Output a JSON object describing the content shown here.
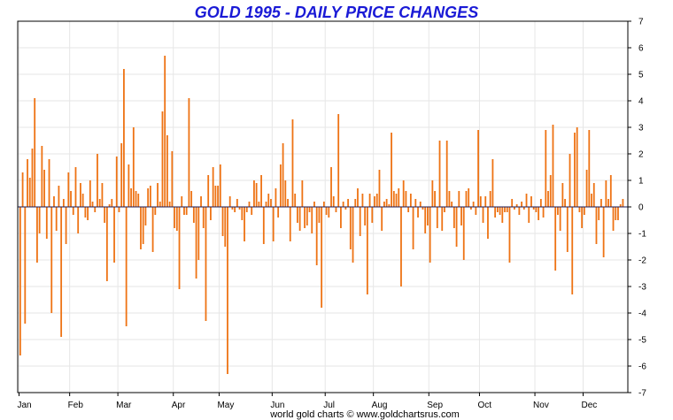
{
  "chart_data": {
    "type": "bar",
    "title": "GOLD 1995 - DAILY PRICE CHANGES",
    "footer": "world gold charts © www.goldchartsrus.com",
    "ylim": [
      -7,
      7
    ],
    "yticks": [
      "7",
      "6",
      "5",
      "4",
      "3",
      "2",
      "1",
      "0",
      "-1",
      "-2",
      "-3",
      "-4",
      "-5",
      "-6",
      "-7"
    ],
    "y_axis_side": "right",
    "grid": true,
    "months": [
      "Jan",
      "Feb",
      "Mar",
      "Apr",
      "May",
      "Jun",
      "Jul",
      "Aug",
      "Sep",
      "Oct",
      "Nov",
      "Dec"
    ],
    "x_domain_days": 252,
    "month_start_day": [
      0,
      21,
      41,
      64,
      83,
      105,
      127,
      147,
      170,
      191,
      214,
      234
    ],
    "series": [
      {
        "values": [
          -5.6,
          1.3,
          -4.4,
          1.8,
          1.1,
          2.2,
          4.1,
          -2.1,
          -1.0,
          2.3,
          1.4,
          -1.2,
          1.8,
          -4.0,
          0.4,
          -0.9,
          0.8,
          -4.9,
          0.3,
          -1.4,
          1.3,
          0.6,
          -0.3,
          1.5,
          -1.0,
          0.9,
          0.5,
          -0.4,
          -0.5,
          1.0,
          0.2,
          -0.2,
          2.0,
          0.3,
          0.9,
          -0.6,
          -2.8,
          0.1,
          0.3,
          -2.1,
          1.9,
          -0.2,
          2.4,
          5.2,
          -4.5,
          1.6,
          0.7,
          3.0,
          0.6,
          0.5,
          -1.6,
          -1.4,
          -0.7,
          0.7,
          0.8,
          -1.7,
          -0.3,
          0.9,
          0.2,
          3.6,
          5.7,
          2.7,
          0.2,
          2.1,
          -0.8,
          -0.9,
          -3.1,
          0.4,
          -0.3,
          -0.3,
          4.1,
          0.6,
          -0.6,
          -2.7,
          -2.0,
          0.4,
          -0.8,
          -4.3,
          1.2,
          -0.5,
          1.5,
          0.8,
          0.8,
          1.6,
          -1.1,
          -1.5,
          -6.3,
          0.4,
          -0.1,
          -0.2,
          0.3,
          -0.1,
          -0.5,
          -1.3,
          -0.2,
          0.2,
          -0.3,
          1.0,
          0.9,
          0.2,
          1.2,
          -1.4,
          0.2,
          0.5,
          0.3,
          -1.3,
          0.7,
          -0.4,
          1.6,
          2.4,
          1.0,
          0.3,
          -1.3,
          3.3,
          0.5,
          -0.6,
          -0.9,
          1.0,
          -0.8,
          -0.7,
          -0.2,
          -1.0,
          0.2,
          -2.2,
          -0.6,
          -3.8,
          0.2,
          -0.3,
          -0.4,
          1.5,
          0.4,
          -0.2,
          3.5,
          -0.8,
          0.2,
          -0.1,
          0.3,
          -1.6,
          -2.1,
          0.3,
          0.7,
          -1.1,
          0.5,
          -0.7,
          -3.3,
          0.5,
          -0.6,
          0.4,
          0.5,
          1.4,
          -0.9,
          0.2,
          0.3,
          0.1,
          2.8,
          0.6,
          0.5,
          0.7,
          -3.0,
          1.0,
          0.6,
          -0.2,
          0.5,
          -1.6,
          0.3,
          -0.4,
          0.2,
          -0.1,
          -1.0,
          -0.7,
          -2.1,
          1.0,
          0.6,
          -0.8,
          2.5,
          -0.9,
          -0.2,
          2.5,
          0.6,
          0.2,
          -0.8,
          -1.5,
          0.6,
          -0.7,
          -2.0,
          0.6,
          0.7,
          -0.1,
          0.2,
          -0.3,
          2.9,
          0.4,
          -0.6,
          0.4,
          -1.2,
          0.6,
          1.8,
          -0.4,
          -0.2,
          -0.3,
          -0.6,
          -0.2,
          -0.2,
          -2.1,
          0.3,
          -0.1,
          0.1,
          -0.3,
          0.2,
          -0.1,
          0.5,
          -0.6,
          0.4,
          -0.1,
          -0.2,
          -0.5,
          0.3,
          -0.4,
          2.9,
          0.6,
          1.2,
          3.1,
          -2.4,
          -0.3,
          -0.9,
          0.9,
          0.3,
          -1.7,
          2.0,
          -3.3,
          2.8,
          3.0,
          -0.2,
          -0.8,
          -0.3,
          1.4,
          2.9,
          0.5,
          0.9,
          -1.4,
          -0.5,
          0.3,
          -1.9,
          1.0,
          0.3,
          1.2,
          -0.9,
          -0.5,
          -0.5,
          0.1,
          0.3
        ]
      }
    ]
  }
}
